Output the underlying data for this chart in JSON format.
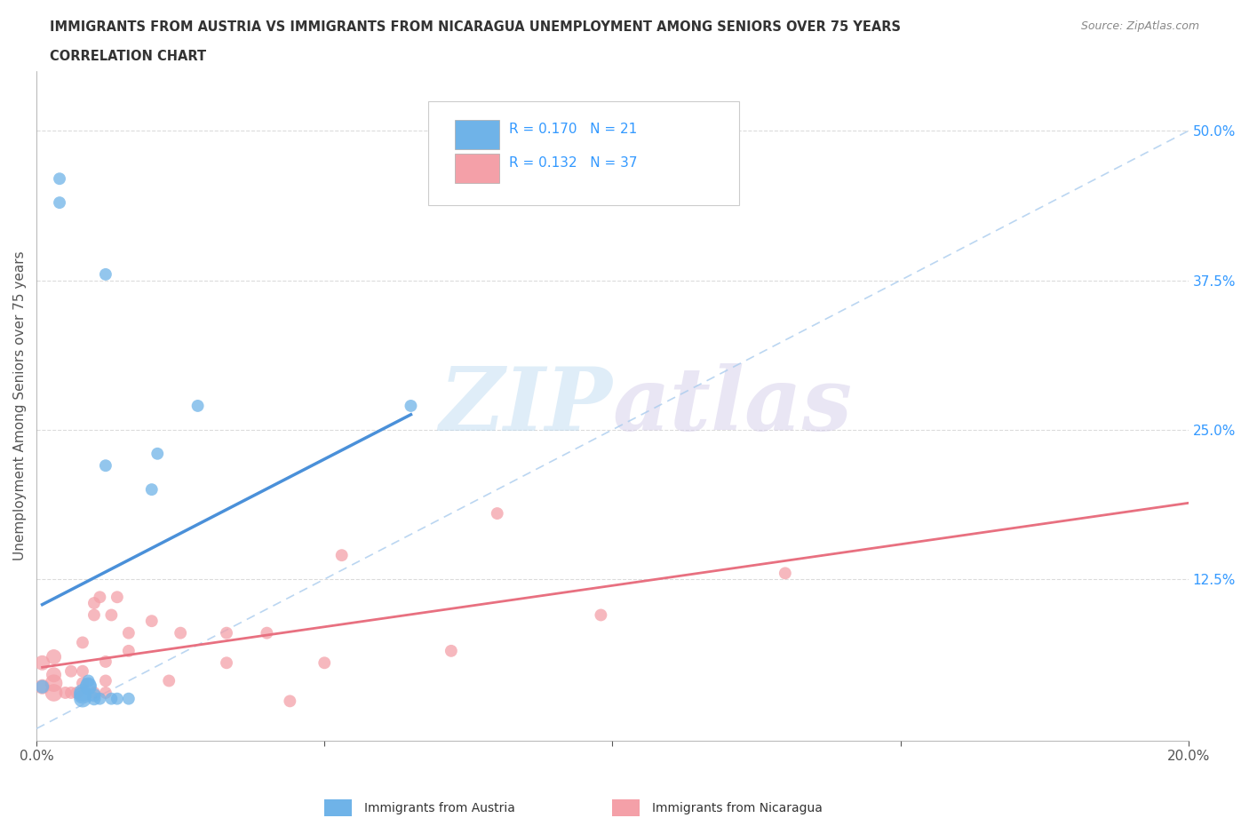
{
  "title_line1": "IMMIGRANTS FROM AUSTRIA VS IMMIGRANTS FROM NICARAGUA UNEMPLOYMENT AMONG SENIORS OVER 75 YEARS",
  "title_line2": "CORRELATION CHART",
  "source_text": "Source: ZipAtlas.com",
  "ylabel": "Unemployment Among Seniors over 75 years",
  "xlim": [
    0.0,
    0.2
  ],
  "ylim": [
    -0.01,
    0.55
  ],
  "xticks": [
    0.0,
    0.05,
    0.1,
    0.15,
    0.2
  ],
  "xticklabels": [
    "0.0%",
    "",
    "",
    "",
    "20.0%"
  ],
  "yticks_right": [
    0.0,
    0.125,
    0.25,
    0.375,
    0.5
  ],
  "yticklabels_right": [
    "",
    "12.5%",
    "25.0%",
    "37.5%",
    "50.0%"
  ],
  "austria_color": "#6fb3e8",
  "nicaragua_color": "#f4a0a8",
  "austria_line_color": "#4a90d9",
  "nicaragua_line_color": "#e87080",
  "austria_R": 0.17,
  "austria_N": 21,
  "nicaragua_R": 0.132,
  "nicaragua_N": 37,
  "legend_R_color": "#3399ff",
  "watermark_zip": "ZIP",
  "watermark_atlas": "atlas",
  "austria_scatter_x": [
    0.001,
    0.004,
    0.004,
    0.008,
    0.008,
    0.008,
    0.009,
    0.009,
    0.009,
    0.01,
    0.01,
    0.011,
    0.012,
    0.012,
    0.013,
    0.014,
    0.016,
    0.02,
    0.021,
    0.028,
    0.065
  ],
  "austria_scatter_y": [
    0.035,
    0.44,
    0.46,
    0.025,
    0.028,
    0.03,
    0.035,
    0.036,
    0.04,
    0.025,
    0.028,
    0.025,
    0.22,
    0.38,
    0.025,
    0.025,
    0.025,
    0.2,
    0.23,
    0.27,
    0.27
  ],
  "austria_scatter_sizes": [
    120,
    100,
    100,
    200,
    200,
    200,
    180,
    180,
    100,
    120,
    120,
    100,
    100,
    100,
    100,
    100,
    100,
    100,
    100,
    100,
    100
  ],
  "nicaragua_scatter_x": [
    0.001,
    0.001,
    0.003,
    0.003,
    0.003,
    0.003,
    0.005,
    0.006,
    0.006,
    0.007,
    0.008,
    0.008,
    0.008,
    0.01,
    0.01,
    0.01,
    0.011,
    0.012,
    0.012,
    0.012,
    0.013,
    0.014,
    0.016,
    0.016,
    0.02,
    0.023,
    0.025,
    0.033,
    0.033,
    0.04,
    0.044,
    0.05,
    0.053,
    0.072,
    0.08,
    0.098,
    0.13
  ],
  "nicaragua_scatter_y": [
    0.035,
    0.055,
    0.03,
    0.038,
    0.045,
    0.06,
    0.03,
    0.03,
    0.048,
    0.03,
    0.038,
    0.048,
    0.072,
    0.03,
    0.095,
    0.105,
    0.11,
    0.03,
    0.04,
    0.056,
    0.095,
    0.11,
    0.065,
    0.08,
    0.09,
    0.04,
    0.08,
    0.055,
    0.08,
    0.08,
    0.023,
    0.055,
    0.145,
    0.065,
    0.18,
    0.095,
    0.13
  ],
  "nicaragua_scatter_sizes": [
    150,
    150,
    200,
    200,
    150,
    150,
    100,
    100,
    100,
    100,
    100,
    100,
    100,
    100,
    100,
    100,
    100,
    100,
    100,
    100,
    100,
    100,
    100,
    100,
    100,
    100,
    100,
    100,
    100,
    100,
    100,
    100,
    100,
    100,
    100,
    100,
    100
  ]
}
